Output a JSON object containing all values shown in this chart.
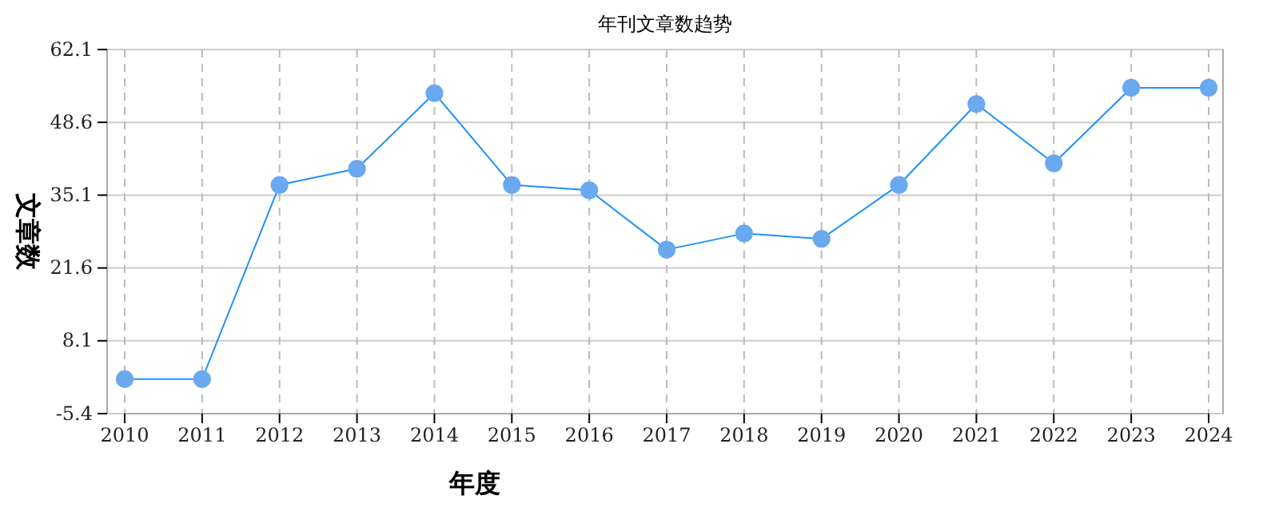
{
  "chart_data": {
    "type": "line",
    "title": "年刊文章数趋势",
    "xlabel": "年度",
    "ylabel": "文章数",
    "categories": [
      "2010",
      "2011",
      "2012",
      "2013",
      "2014",
      "2015",
      "2016",
      "2017",
      "2018",
      "2019",
      "2020",
      "2021",
      "2022",
      "2023",
      "2024"
    ],
    "series": [
      {
        "color": "#1e90ff",
        "values": [
          1,
          1,
          37,
          40,
          54,
          37,
          36,
          25,
          28,
          27,
          37,
          52,
          41,
          55,
          55
        ]
      }
    ],
    "ylim": [
      -5.4,
      62.1
    ],
    "yticks": [
      -5.4,
      8.1,
      21.6,
      35.1,
      48.6,
      62.1
    ],
    "grid": true,
    "marker": "circle",
    "line_style": "solid"
  }
}
